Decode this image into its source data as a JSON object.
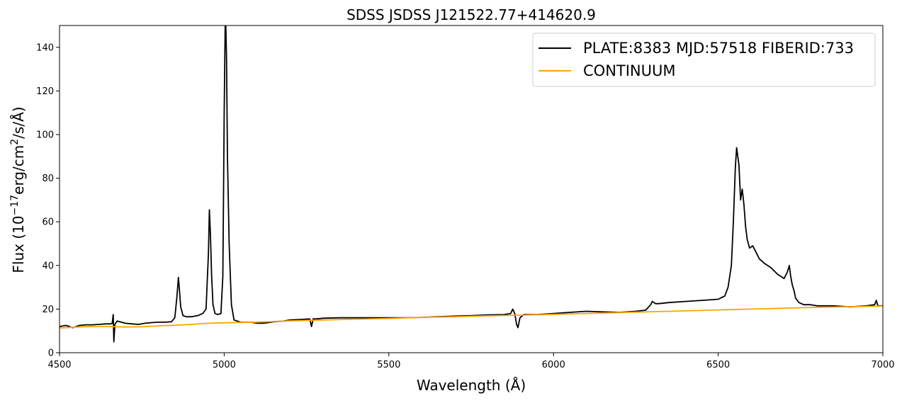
{
  "chart_data": {
    "type": "line",
    "title": "SDSS JSDSS J121522.77+414620.9",
    "xlabel": "Wavelength (Å)",
    "ylabel_parts": {
      "prefix": "Flux (10",
      "exp1": "−17",
      "mid": "erg/cm",
      "exp2": "2",
      "suffix": "/s/Å)"
    },
    "xlim": [
      4500,
      7000
    ],
    "ylim": [
      0,
      150
    ],
    "x_ticks": [
      4500,
      5000,
      5500,
      6000,
      6500,
      7000
    ],
    "y_ticks": [
      0,
      20,
      40,
      60,
      80,
      100,
      120,
      140
    ],
    "grid": false,
    "legend_position": "top-right",
    "series": [
      {
        "name": "PLATE:8383 MJD:57518 FIBERID:733",
        "color": "#000000",
        "x": [
          4500,
          4520,
          4540,
          4560,
          4580,
          4600,
          4620,
          4640,
          4655,
          4660,
          4663,
          4665,
          4668,
          4675,
          4700,
          4720,
          4740,
          4760,
          4780,
          4800,
          4820,
          4840,
          4850,
          4856,
          4861,
          4864,
          4868,
          4875,
          4885,
          4900,
          4920,
          4935,
          4945,
          4952,
          4955,
          4958,
          4962,
          4966,
          4972,
          4980,
          4990,
          4996,
          5000,
          5003,
          5005,
          5007,
          5010,
          5015,
          5022,
          5030,
          5050,
          5080,
          5100,
          5120,
          5150,
          5180,
          5200,
          5230,
          5260,
          5265,
          5270,
          5280,
          5300,
          5350,
          5400,
          5450,
          5500,
          5550,
          5600,
          5650,
          5700,
          5750,
          5800,
          5850,
          5870,
          5876,
          5882,
          5888,
          5892,
          5898,
          5910,
          5950,
          6000,
          6050,
          6100,
          6150,
          6200,
          6250,
          6280,
          6295,
          6300,
          6310,
          6320,
          6350,
          6400,
          6450,
          6500,
          6520,
          6530,
          6540,
          6546,
          6552,
          6556,
          6563,
          6568,
          6573,
          6578,
          6583,
          6588,
          6595,
          6605,
          6615,
          6625,
          6640,
          6660,
          6680,
          6700,
          6710,
          6716,
          6720,
          6725,
          6731,
          6735,
          6745,
          6760,
          6780,
          6800,
          6850,
          6900,
          6950,
          6975,
          6980,
          6985,
          7000
        ],
        "values": [
          12,
          12.5,
          11.5,
          12.5,
          12.8,
          12.8,
          13,
          13.2,
          13.2,
          13.5,
          17.5,
          5,
          13,
          14.5,
          13.5,
          13.2,
          13,
          13.5,
          13.8,
          14,
          14,
          14.2,
          16,
          25,
          34.5,
          29,
          21,
          17,
          16.5,
          16.5,
          17,
          18,
          20,
          45,
          65.5,
          55,
          35,
          22,
          18,
          17.5,
          18,
          35,
          110,
          150,
          150,
          135,
          90,
          50,
          22,
          15,
          14,
          14,
          13.5,
          13.5,
          14.2,
          14.5,
          15,
          15.2,
          15.5,
          12,
          15.5,
          15.5,
          15.8,
          16,
          16,
          16,
          16,
          16,
          16.2,
          16.5,
          16.8,
          17,
          17.3,
          17.5,
          18,
          20,
          18,
          13,
          11.5,
          16,
          17.5,
          17.5,
          18,
          18.5,
          19,
          18.7,
          18.5,
          19,
          19.5,
          22,
          23.5,
          22.5,
          22.5,
          23,
          23.5,
          24,
          24.5,
          26,
          30,
          40,
          60,
          85,
          94,
          86,
          70,
          75,
          68,
          58,
          52,
          48,
          49,
          46,
          43,
          41,
          39,
          36,
          34,
          37,
          40,
          35,
          31,
          28,
          25,
          23,
          22,
          22,
          21.5,
          21.5,
          21,
          21.5,
          22,
          24,
          21.5,
          21.5
        ]
      },
      {
        "name": "CONTINUUM",
        "color": "#ffa500",
        "x": [
          4500,
          4550,
          4600,
          4650,
          4700,
          4750,
          4800,
          4850,
          4900,
          4950,
          5000,
          5050,
          5100,
          5200,
          5300,
          5400,
          5500,
          5600,
          5700,
          5800,
          5900,
          6000,
          6100,
          6200,
          6300,
          6400,
          6500,
          6600,
          6700,
          6800,
          6900,
          7000
        ],
        "values": [
          11.3,
          11.8,
          12,
          12,
          11.8,
          11.9,
          12.3,
          12.6,
          13,
          13.5,
          13.7,
          13.9,
          14,
          14.6,
          15,
          15.4,
          15.7,
          16.2,
          16.5,
          16.9,
          17.2,
          17.6,
          18,
          18.4,
          18.8,
          19.2,
          19.6,
          20,
          20.4,
          20.8,
          21.1,
          21.4
        ]
      }
    ]
  }
}
